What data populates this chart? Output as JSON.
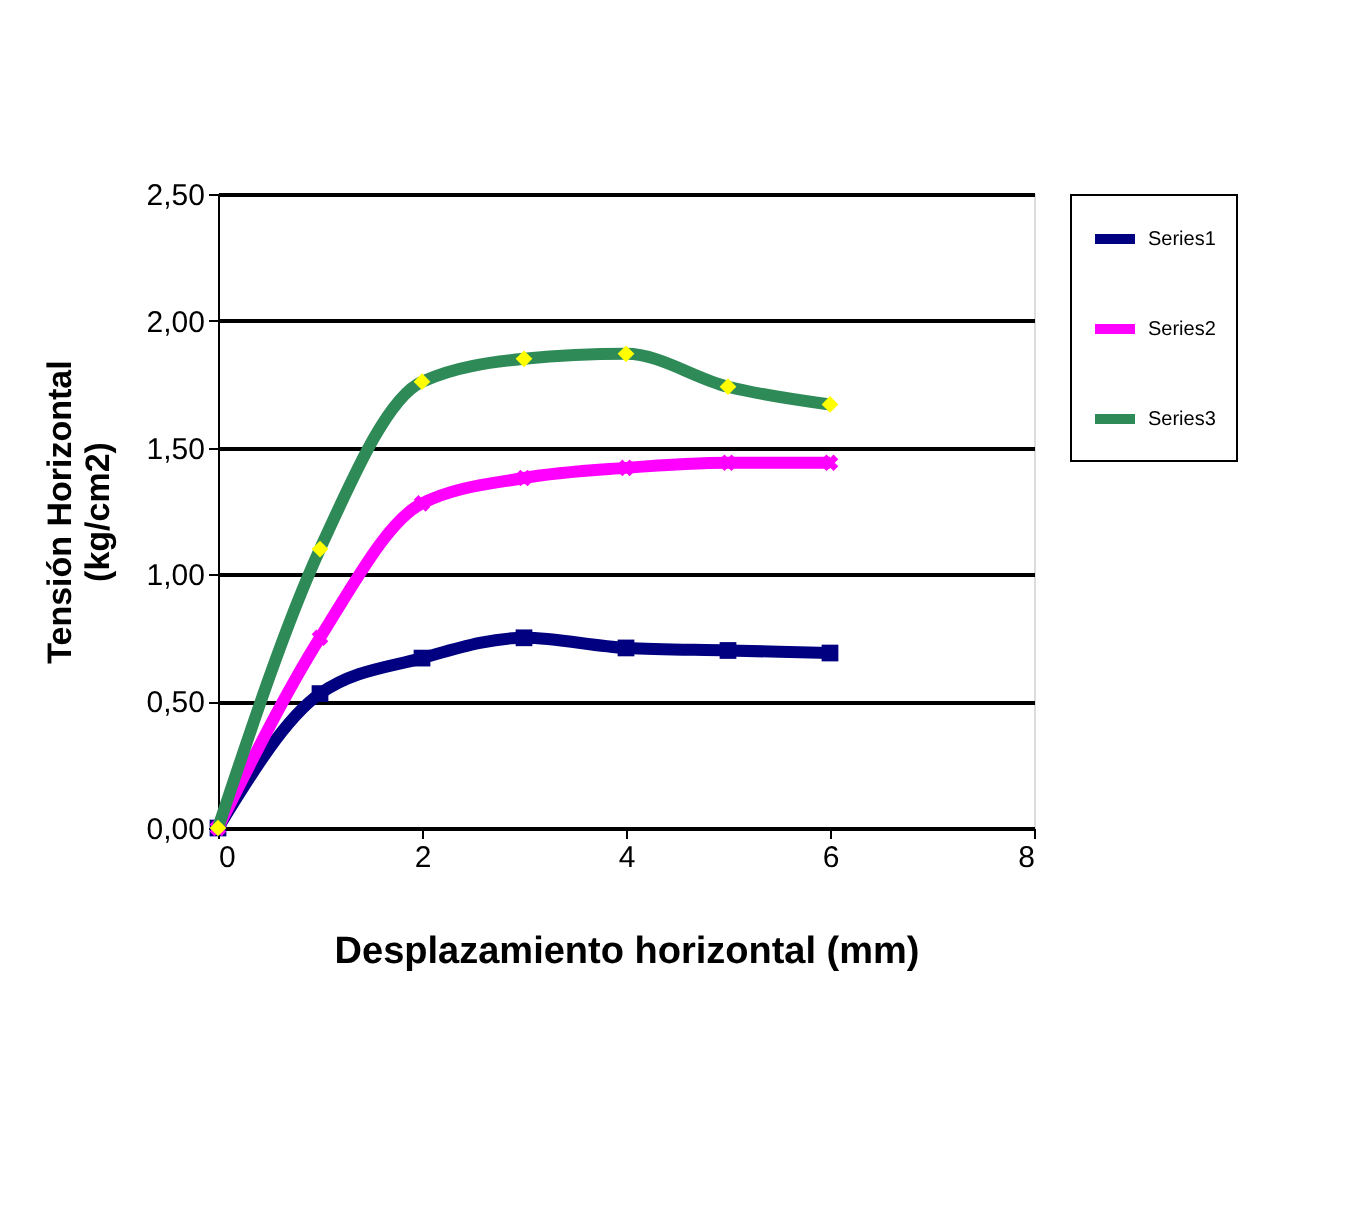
{
  "chart_data": {
    "type": "line",
    "xlabel": "Desplazamiento horizontal (mm)",
    "ylabel": "Tensión Horizontal\n(kg/cm2)",
    "x": [
      0,
      1,
      2,
      3,
      4,
      5,
      6
    ],
    "series": [
      {
        "name": "Series1",
        "color": "#000080",
        "marker": "square",
        "values": [
          0,
          0.53,
          0.67,
          0.75,
          0.71,
          0.7,
          0.69
        ]
      },
      {
        "name": "Series2",
        "color": "#ff00ff",
        "marker": "cross",
        "values": [
          0,
          0.75,
          1.28,
          1.38,
          1.42,
          1.44,
          1.44
        ]
      },
      {
        "name": "Series3",
        "color": "#2e8b57",
        "marker": "diamond",
        "values": [
          0,
          1.1,
          1.76,
          1.85,
          1.87,
          1.74,
          1.67
        ]
      }
    ],
    "xlim": [
      0,
      8
    ],
    "xticks": [
      0,
      2,
      4,
      6,
      8
    ],
    "ylim": [
      0,
      2.5
    ],
    "yticks": [
      {
        "value": 0,
        "label": "0,00"
      },
      {
        "value": 0.5,
        "label": "0,50"
      },
      {
        "value": 1,
        "label": "1,00"
      },
      {
        "value": 1.5,
        "label": "1,50"
      },
      {
        "value": 2,
        "label": "2,00"
      },
      {
        "value": 2.5,
        "label": "2,50"
      }
    ],
    "grid": "y",
    "legend": "right",
    "line_style": "solid"
  }
}
